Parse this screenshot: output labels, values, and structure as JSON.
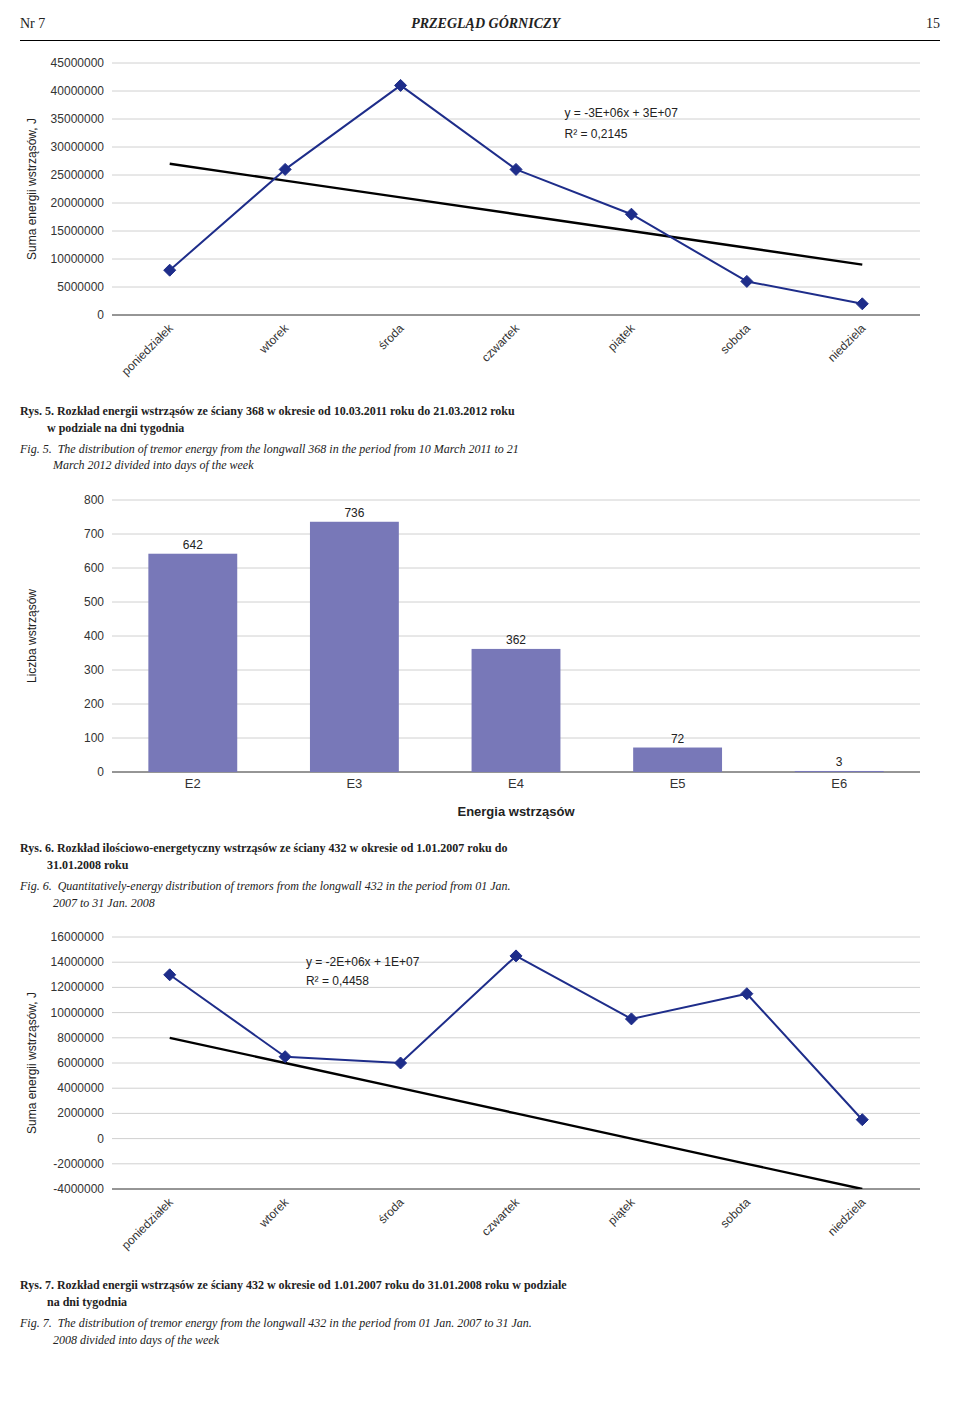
{
  "header": {
    "left": "Nr 7",
    "center": "PRZEGLĄD GÓRNICZY",
    "right": "15"
  },
  "chart_data": [
    {
      "type": "line",
      "categories": [
        "poniedziałek",
        "wtorek",
        "środa",
        "czwartek",
        "piątek",
        "sobota",
        "niedziela"
      ],
      "series": [
        {
          "type": "line",
          "color": "#000000",
          "marker": "none",
          "values": [
            27000000,
            24000000,
            21000000,
            18000000,
            15000000,
            12000000,
            9000000
          ]
        },
        {
          "type": "line",
          "color": "#1e2d8a",
          "marker": "diamond",
          "values": [
            8000000,
            26000000,
            41000000,
            26000000,
            18000000,
            6000000,
            2000000
          ]
        }
      ],
      "ylabel": "Suma energii wstrząsów, J",
      "ylim": [
        0,
        45000000
      ],
      "yticks": [
        0,
        5000000,
        10000000,
        15000000,
        20000000,
        25000000,
        30000000,
        35000000,
        40000000,
        45000000
      ],
      "grid": true,
      "annotations": [
        "y = -3E+06x + 3E+07",
        "R² = 0,2145"
      ],
      "caption": [
        "Rys. 5. Rozkład energii wstrząsów ze ściany 368 w okresie od 10.03.2011 roku do 21.03.2012 roku\n         w podziale na dni tygodnia",
        "Fig. 5.  The distribution of tremor energy from the longwall 368 in the period from 10 March 2011 to 21\n           March 2012 divided into days of the week"
      ]
    },
    {
      "type": "bar",
      "categories": [
        "E2",
        "E3",
        "E4",
        "E5",
        "E6"
      ],
      "values": [
        642,
        736,
        362,
        72,
        3
      ],
      "color": "#7878b8",
      "ylabel": "Liczba wstrząsów",
      "xlabel": "Energia wstrząsów",
      "ylim": [
        0,
        800
      ],
      "yticks": [
        0,
        100,
        200,
        300,
        400,
        500,
        600,
        700,
        800
      ],
      "grid": true,
      "data_labels": true,
      "caption": [
        "Rys. 6. Rozkład ilościowo-energetyczny wstrząsów ze ściany 432 w okresie od 1.01.2007 roku do\n         31.01.2008 roku",
        "Fig. 6.  Quantitatively-energy distribution of tremors from the longwall 432 in the period from 01 Jan.\n           2007 to 31 Jan. 2008"
      ]
    },
    {
      "type": "line",
      "categories": [
        "poniedziałek",
        "wtorek",
        "środa",
        "czwartek",
        "piątek",
        "sobota",
        "niedziela"
      ],
      "series": [
        {
          "type": "line",
          "color": "#000000",
          "marker": "none",
          "values": [
            8000000,
            6000000,
            4000000,
            2000000,
            0,
            -2000000,
            -4000000
          ]
        },
        {
          "type": "line",
          "color": "#1e2d8a",
          "marker": "diamond",
          "values": [
            13000000,
            6500000,
            6000000,
            14500000,
            9500000,
            11500000,
            1500000
          ]
        }
      ],
      "ylabel": "Suma energii wstrząsów, J",
      "ylim": [
        -4000000,
        16000000
      ],
      "yticks": [
        -4000000,
        -2000000,
        0,
        2000000,
        4000000,
        6000000,
        8000000,
        10000000,
        12000000,
        14000000,
        16000000
      ],
      "grid": true,
      "annotations": [
        "y = -2E+06x + 1E+07",
        "R² = 0,4458"
      ],
      "caption": [
        "Rys. 7. Rozkład energii wstrząsów ze ściany 432 w okresie od 1.01.2007 roku do 31.01.2008 roku w podziale\n         na dni tygodnia",
        "Fig. 7.  The distribution of tremor energy from the longwall 432 in the period from 01 Jan. 2007 to 31 Jan.\n           2008 divided into days of the week"
      ]
    }
  ]
}
